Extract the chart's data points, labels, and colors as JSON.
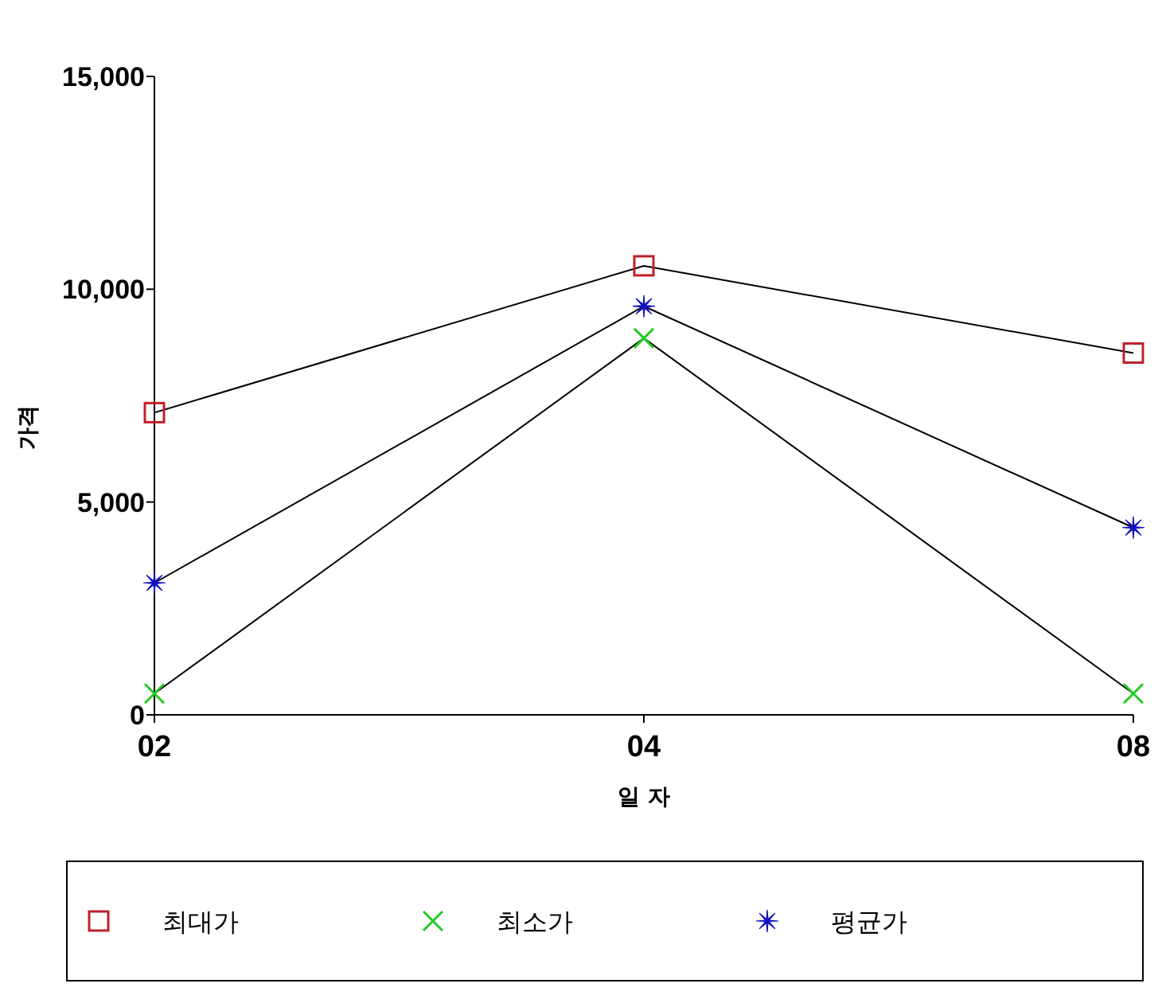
{
  "chart_data": {
    "type": "line",
    "xlabel": "일 자",
    "ylabel": "가격",
    "categories": [
      "02",
      "04",
      "08"
    ],
    "series": [
      {
        "name": "최대가",
        "color": "#c0202a",
        "marker": "square",
        "values": [
          7100,
          10550,
          8500
        ]
      },
      {
        "name": "최소가",
        "color": "#22cc22",
        "marker": "cross",
        "values": [
          500,
          8850,
          500
        ]
      },
      {
        "name": "평균가",
        "color": "#1010c0",
        "marker": "star",
        "values": [
          3100,
          9600,
          4400
        ]
      }
    ],
    "ylim": [
      0,
      15000
    ],
    "yticks": [
      {
        "value": 0,
        "label": "0"
      },
      {
        "value": 5000,
        "label": "5,000"
      },
      {
        "value": 10000,
        "label": "10,000"
      },
      {
        "value": 15000,
        "label": "15,000"
      }
    ],
    "legend": "bottom"
  }
}
